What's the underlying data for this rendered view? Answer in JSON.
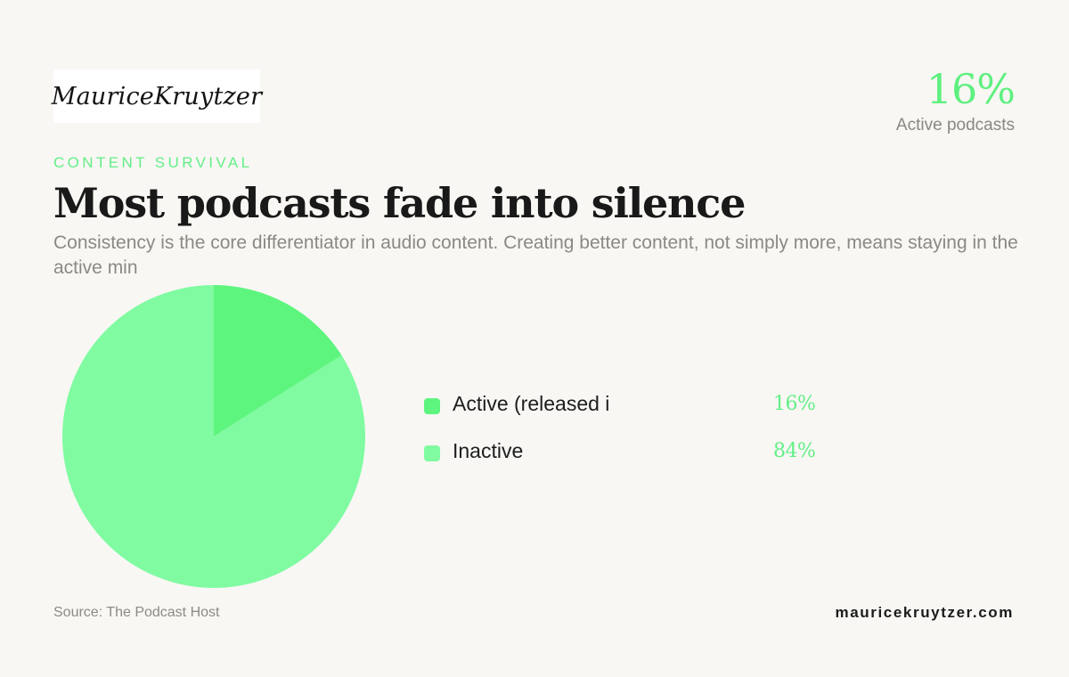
{
  "brand": {
    "logo_text": "MauriceKruytzer",
    "website": "mauricekruytzer.com"
  },
  "kpi": {
    "value": "16%",
    "label": "Active podcasts"
  },
  "header": {
    "eyebrow": "CONTENT SURVIVAL",
    "title": "Most podcasts fade into silence",
    "subtitle": "Consistency is the core differentiator in audio content. Creating better content, not simply more, means staying in the active min"
  },
  "footer": {
    "source": "Source: The Podcast Host"
  },
  "colors": {
    "active": "#5ef57f",
    "inactive": "#80fba1",
    "accent_text": "#63ef86",
    "background": "#f8f7f4"
  },
  "chart_data": {
    "type": "pie",
    "title": "",
    "legend_position": "right",
    "series": [
      {
        "name": "Active (released i",
        "value": 16,
        "label": "16%",
        "color": "#5ef57f"
      },
      {
        "name": "Inactive",
        "value": 84,
        "label": "84%",
        "color": "#80fba1"
      }
    ]
  }
}
